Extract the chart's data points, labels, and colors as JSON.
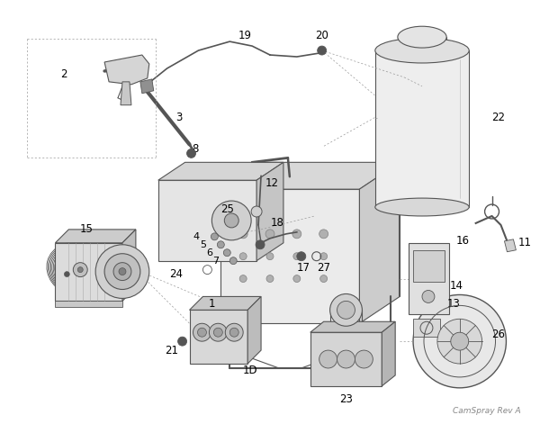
{
  "watermark": "CamSpray Rev A",
  "background_color": "#ffffff",
  "fig_width": 6.0,
  "fig_height": 4.71,
  "dpi": 100,
  "label_fontsize": 8.5,
  "watermark_fontsize": 6.5,
  "draw_color": "#555555",
  "light_gray": "#e8e8e8",
  "mid_gray": "#c8c8c8",
  "dark_gray": "#a0a0a0",
  "line_color": "#555555"
}
